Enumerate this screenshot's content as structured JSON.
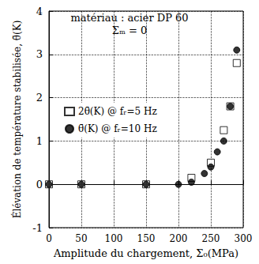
{
  "chart_data": {
    "type": "scatter",
    "annotations": [
      "matériau : acier DP 60",
      "Σₘ = 0"
    ],
    "x_label": "Amplitude du chargement, Σ₀(MPa)",
    "y_label": "Élévation de température stabilisée, θ̄(K)",
    "xlim": [
      0,
      300
    ],
    "xticks": [
      0,
      50,
      100,
      150,
      200,
      250,
      300
    ],
    "ylim": [
      -1,
      4
    ],
    "yticks": [
      -1,
      0,
      1,
      2,
      3,
      4
    ],
    "grid": true,
    "legend": "left",
    "series": [
      {
        "name": "2θ̄(K) @ fᵣ=5 Hz",
        "color": "#000000",
        "marker": "square_open",
        "x": [
          0,
          50,
          150,
          220,
          250,
          270,
          280,
          290
        ],
        "values": [
          0,
          0,
          0,
          0.15,
          0.5,
          1.25,
          1.8,
          2.8
        ]
      },
      {
        "name": "θ̄(K) @ fᵣ=10 Hz",
        "color": "#000000",
        "marker": "circle",
        "x": [
          0,
          50,
          150,
          200,
          220,
          240,
          250,
          260,
          270,
          280,
          290
        ],
        "values": [
          0,
          0,
          0,
          0,
          0.05,
          0.25,
          0.4,
          0.75,
          1.0,
          1.8,
          3.1
        ]
      }
    ]
  }
}
